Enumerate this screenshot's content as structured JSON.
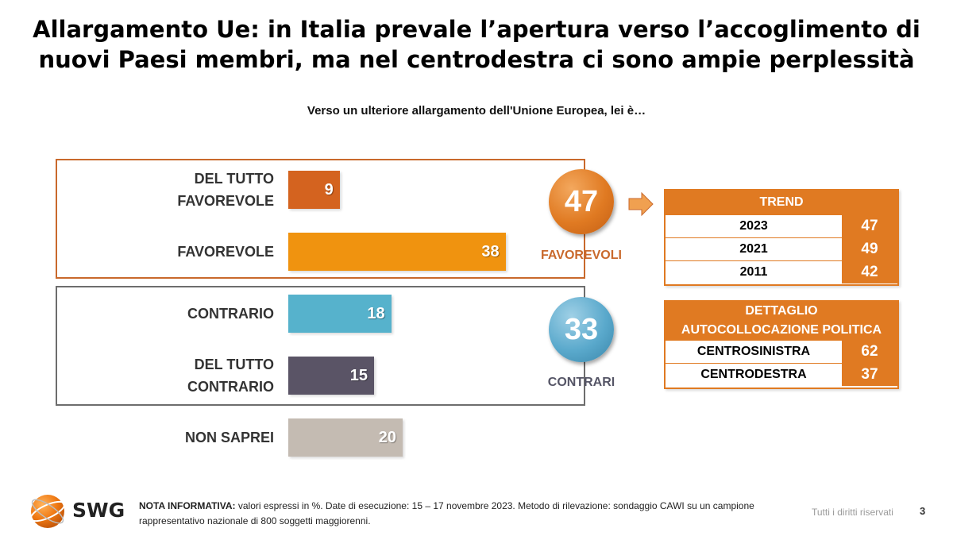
{
  "header": {
    "title_line1": "Allargamento Ue: in Italia prevale l’apertura verso l’accoglimento di",
    "title_line2": "nuovi Paesi membri, ma nel centrodestra ci sono ampie perplessità",
    "subtitle": "Verso un ulteriore allargamento dell'Unione Europea, lei è…"
  },
  "chart_data": {
    "type": "bar",
    "orientation": "horizontal",
    "categories": [
      "DEL TUTTO FAVOREVOLE",
      "FAVOREVOLE",
      "CONTRARIO",
      "DEL TUTTO CONTRARIO",
      "NON SAPREI"
    ],
    "category_lines": [
      [
        "DEL TUTTO",
        "FAVOREVOLE"
      ],
      [
        "FAVOREVOLE"
      ],
      [
        "CONTRARIO"
      ],
      [
        "DEL TUTTO",
        "CONTRARIO"
      ],
      [
        "NON SAPREI"
      ]
    ],
    "values": [
      9,
      38,
      18,
      15,
      20
    ],
    "colors": [
      "#d4631f",
      "#f0930f",
      "#56b2cc",
      "#5a5466",
      "#c4bbb2"
    ],
    "xlim": [
      0,
      100
    ],
    "grid": false,
    "legend": "none"
  },
  "summary": {
    "favorevoli": {
      "value": "47",
      "label": "FAVOREVOLI",
      "color": "#e07a22"
    },
    "contrari": {
      "value": "33",
      "label": "CONTRARI",
      "color": "#5aa9cc"
    }
  },
  "trend_table": {
    "header": "TREND",
    "rows": [
      {
        "label": "2023",
        "value": "47"
      },
      {
        "label": "2021",
        "value": "49"
      },
      {
        "label": "2011",
        "value": "42"
      }
    ]
  },
  "political_table": {
    "header_line1": "DETTAGLIO",
    "header_line2": "AUTOCOLLOCAZIONE POLITICA",
    "rows": [
      {
        "label": "CENTROSINISTRA",
        "value": "62"
      },
      {
        "label": "CENTRODESTRA",
        "value": "37"
      }
    ]
  },
  "footer": {
    "logo_text": "SWG",
    "note_label": "NOTA INFORMATIVA:",
    "note_text": " valori espressi in %. Date di esecuzione: 15 – 17 novembre 2023. Metodo di rilevazione: sondaggio CAWI su un campione rappresentativo nazionale di 800 soggetti maggiorenni.",
    "rights": "Tutti i diritti riservati",
    "page_number": "3"
  },
  "colors": {
    "accent_orange": "#e07a22",
    "accent_blue": "#5aa9cc"
  }
}
